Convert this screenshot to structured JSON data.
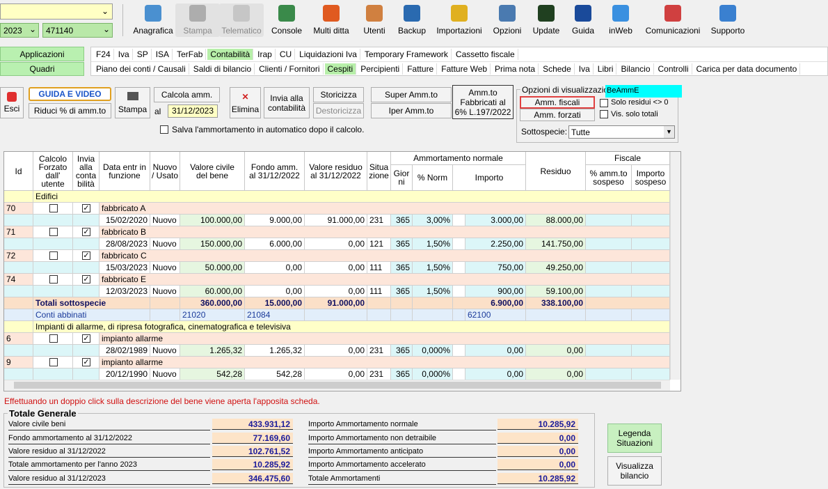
{
  "toolbar": {
    "anno": "2023",
    "codice": "471140",
    "buttons": [
      {
        "label": "Anagrafica"
      },
      {
        "label": "Stampa",
        "disabled": true
      },
      {
        "label": "Telematico",
        "disabled": true
      },
      {
        "label": "Console"
      },
      {
        "label": "Multi ditta"
      },
      {
        "label": "Utenti"
      },
      {
        "label": "Backup"
      },
      {
        "label": "Importazioni"
      },
      {
        "label": "Opzioni"
      },
      {
        "label": "Update"
      },
      {
        "label": "Guida"
      },
      {
        "label": "inWeb"
      },
      {
        "label": "Comunicazioni"
      },
      {
        "label": "Supporto"
      }
    ]
  },
  "sidebar": [
    "Applicazioni",
    "Quadri"
  ],
  "menu": {
    "row1": [
      {
        "label": "F24"
      },
      {
        "label": "Iva"
      },
      {
        "label": "SP"
      },
      {
        "label": "ISA"
      },
      {
        "label": "TerFab"
      },
      {
        "label": "Contabilità",
        "active": true
      },
      {
        "label": "Irap"
      },
      {
        "label": "CU"
      },
      {
        "label": "Liquidazioni Iva"
      },
      {
        "label": "Temporary Framework"
      },
      {
        "label": "Cassetto fiscale"
      }
    ],
    "row2": [
      {
        "label": "Piano dei conti / Causali"
      },
      {
        "label": "Saldi di bilancio"
      },
      {
        "label": "Clienti / Fornitori"
      },
      {
        "label": "Cespiti",
        "active": true
      },
      {
        "label": "Percipienti"
      },
      {
        "label": "Fatture"
      },
      {
        "label": "Fatture Web"
      },
      {
        "label": "Prima nota"
      },
      {
        "label": "Schede"
      },
      {
        "label": "Iva"
      },
      {
        "label": "Libri"
      },
      {
        "label": "Bilancio"
      },
      {
        "label": "Controlli"
      },
      {
        "label": "Carica per data documento"
      }
    ]
  },
  "actions": {
    "esci": "Esci",
    "guida": "GUIDA E VIDEO",
    "riduci": "Riduci % di amm.to",
    "stampa": "Stampa",
    "calcola": "Calcola amm.",
    "al": "al",
    "data": "31/12/2023",
    "elimina": "Elimina",
    "invia": "Invia alla\ncontabilità",
    "storicizza": "Storicizza",
    "destoricizza": "Destoricizza",
    "super": "Super Amm.to",
    "iper": "Iper Amm.to",
    "fabbricati": "Amm.to\nFabbricati al\n6% L.197/2022",
    "salva": "Salva l'ammortamento in automatico dopo il calcolo."
  },
  "options": {
    "title": "Opzioni di visualizzazio",
    "tag": "BeAmmE",
    "fiscali": "Amm. fiscali",
    "forzati": "Amm. forzati",
    "solo_residui": "Solo residui <> 0",
    "solo_totali": "Vis. solo totali",
    "sottospecie": "Sottospecie:",
    "sottospecie_value": "Tutte"
  },
  "table": {
    "groups_header": [
      "Ammortamento normale",
      "Fiscale"
    ],
    "columns": [
      "Id",
      "Calcolo\nForzato\ndall'\nutente",
      "Invia\nalla\nconta\nbilità",
      "Data entr in\nfunzione",
      "Nuovo\n/ Usato",
      "Valore civile\ndel bene",
      "Fondo amm.\nal 31/12/2022",
      "Valore residuo\nal 31/12/2022",
      "Situa\nzione",
      "Gior\nni",
      "% Norm",
      "Importo",
      "Residuo",
      "% amm.to\nsospeso",
      "Importo\nsospeso"
    ],
    "groups": [
      {
        "name": "Edifici",
        "assets": [
          {
            "id": "70",
            "forzato": false,
            "invia": true,
            "name": "fabbricato A",
            "date": "15/02/2020",
            "stato": "Nuovo",
            "civile": "100.000,00",
            "fondo": "9.000,00",
            "resval": "91.000,00",
            "sit": "231",
            "gg": "365",
            "perc": "3,00%",
            "importo": "3.000,00",
            "residuo": "88.000,00"
          },
          {
            "id": "71",
            "forzato": false,
            "invia": true,
            "name": "fabbricato B",
            "date": "28/08/2023",
            "stato": "Nuovo",
            "civile": "150.000,00",
            "fondo": "6.000,00",
            "resval": "0,00",
            "sit": "121",
            "gg": "365",
            "perc": "1,50%",
            "importo": "2.250,00",
            "residuo": "141.750,00"
          },
          {
            "id": "72",
            "forzato": false,
            "invia": true,
            "name": "fabbricato C",
            "date": "15/03/2023",
            "stato": "Nuovo",
            "civile": "50.000,00",
            "fondo": "0,00",
            "resval": "0,00",
            "sit": "111",
            "gg": "365",
            "perc": "1,50%",
            "importo": "750,00",
            "residuo": "49.250,00"
          },
          {
            "id": "74",
            "forzato": false,
            "invia": true,
            "name": "fabbricato E",
            "date": "12/03/2023",
            "stato": "Nuovo",
            "civile": "60.000,00",
            "fondo": "0,00",
            "resval": "0,00",
            "sit": "111",
            "gg": "365",
            "perc": "1,50%",
            "importo": "900,00",
            "residuo": "59.100,00"
          }
        ],
        "totals": {
          "label": "Totali sottospecie",
          "civile": "360.000,00",
          "fondo": "15.000,00",
          "resval": "91.000,00",
          "importo": "6.900,00",
          "residuo": "338.100,00"
        },
        "conti": {
          "label": "Conti abbinati",
          "civile": "21020",
          "fondo": "21084",
          "importo": "62100"
        }
      },
      {
        "name": "Impianti di allarme, di ripresa fotografica, cinematografica e televisiva",
        "assets": [
          {
            "id": "6",
            "forzato": false,
            "invia": true,
            "name": "impianto allarme",
            "date": "28/02/1989",
            "stato": "Nuovo",
            "civile": "1.265,32",
            "fondo": "1.265,32",
            "resval": "0,00",
            "sit": "231",
            "gg": "365",
            "perc": "0,000%",
            "importo": "0,00",
            "residuo": "0,00"
          },
          {
            "id": "9",
            "forzato": false,
            "invia": true,
            "name": "impianto allarme",
            "date": "20/12/1990",
            "stato": "Nuovo",
            "civile": "542,28",
            "fondo": "542,28",
            "resval": "0,00",
            "sit": "231",
            "gg": "365",
            "perc": "0,000%",
            "importo": "0,00",
            "residuo": "0,00"
          }
        ]
      }
    ]
  },
  "message": "Effettuando un doppio click sulla descrizione del bene viene aperta l'apposita scheda.",
  "totale": {
    "title": "Totale Generale",
    "left": [
      {
        "label": "Valore civile beni",
        "value": "433.931,12"
      },
      {
        "label": "Fondo ammortamento al 31/12/2022",
        "value": "77.169,60"
      },
      {
        "label": "Valore residuo al 31/12/2022",
        "value": "102.761,52"
      },
      {
        "label": "Totale ammortamento per l'anno 2023",
        "value": "10.285,92"
      },
      {
        "label": "Valore residuo al 31/12/2023",
        "value": "346.475,60"
      }
    ],
    "right": [
      {
        "label": "Importo Ammortamento normale",
        "value": "10.285,92"
      },
      {
        "label": "Importo Ammortamento non detraibile",
        "value": "0,00"
      },
      {
        "label": "Importo Ammortamento anticipato",
        "value": "0,00"
      },
      {
        "label": "Importo Ammortamento accelerato",
        "value": "0,00"
      },
      {
        "label": "Totale Ammortamenti",
        "value": "10.285,92"
      }
    ],
    "legenda": "Legenda\nSituazioni",
    "bilancio": "Visualizza\nbilancio"
  }
}
